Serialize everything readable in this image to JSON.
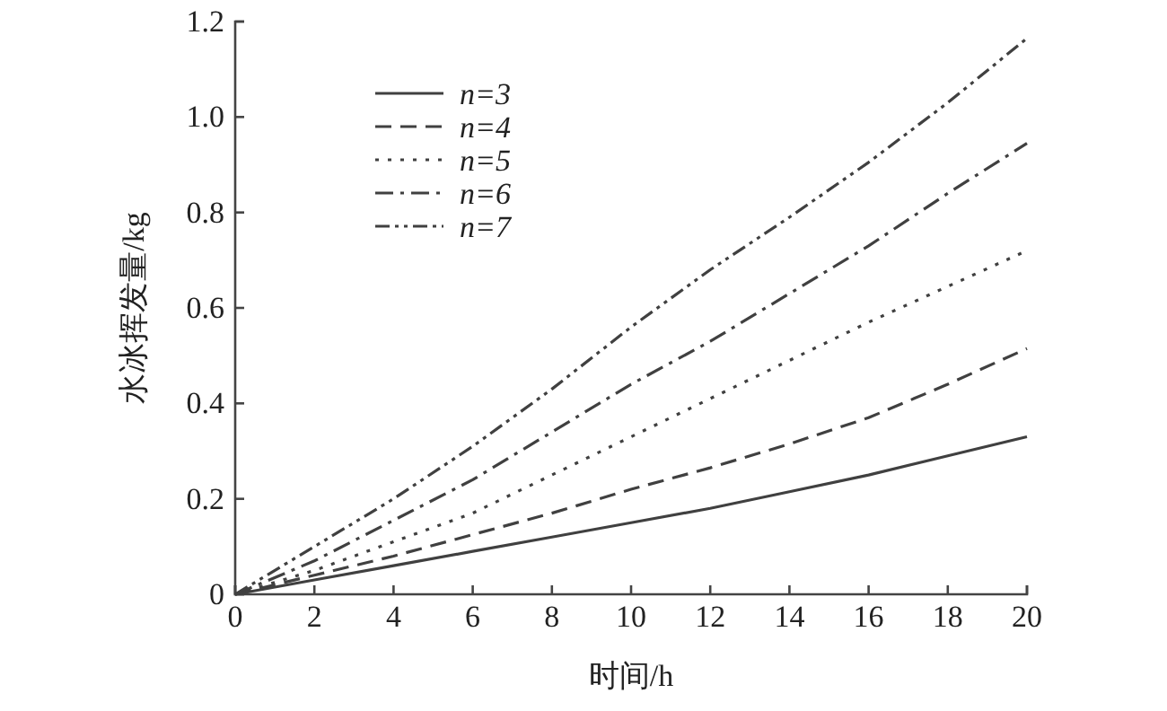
{
  "chart_data": {
    "type": "line",
    "xlabel": "时间/h",
    "ylabel": "水冰挥发量/kg",
    "x": [
      0,
      2,
      4,
      6,
      8,
      10,
      12,
      14,
      16,
      18,
      20
    ],
    "xlim": [
      0,
      20
    ],
    "xticks": [
      0,
      2,
      4,
      6,
      8,
      10,
      12,
      14,
      16,
      18,
      20
    ],
    "ylim": [
      0,
      1.2
    ],
    "yticks": [
      0,
      0.2,
      0.4,
      0.6,
      0.8,
      {
        "value": 1,
        "label": "1.0"
      },
      1.2
    ],
    "grid": false,
    "legend": "top left",
    "marker": "none",
    "series": [
      {
        "name": "n=3",
        "color": "#404040",
        "line_style": "solid",
        "values": [
          0,
          0.03,
          0.06,
          0.09,
          0.12,
          0.15,
          0.18,
          0.215,
          0.25,
          0.29,
          0.33
        ]
      },
      {
        "name": "n=4",
        "color": "#404040",
        "line_style": "dashed",
        "values": [
          0,
          0.04,
          0.08,
          0.125,
          0.17,
          0.22,
          0.265,
          0.315,
          0.37,
          0.44,
          0.515
        ]
      },
      {
        "name": "n=5",
        "color": "#404040",
        "line_style": "dotted",
        "values": [
          0,
          0.05,
          0.11,
          0.17,
          0.25,
          0.33,
          0.41,
          0.49,
          0.57,
          0.645,
          0.72
        ]
      },
      {
        "name": "n=6",
        "color": "#404040",
        "line_style": "dashdot",
        "values": [
          0,
          0.07,
          0.155,
          0.24,
          0.34,
          0.44,
          0.53,
          0.63,
          0.73,
          0.84,
          0.945
        ]
      },
      {
        "name": "n=7",
        "color": "#404040",
        "line_style": "dashdotdot",
        "values": [
          0,
          0.1,
          0.2,
          0.31,
          0.43,
          0.56,
          0.68,
          0.79,
          0.905,
          1.03,
          1.165
        ]
      }
    ]
  }
}
